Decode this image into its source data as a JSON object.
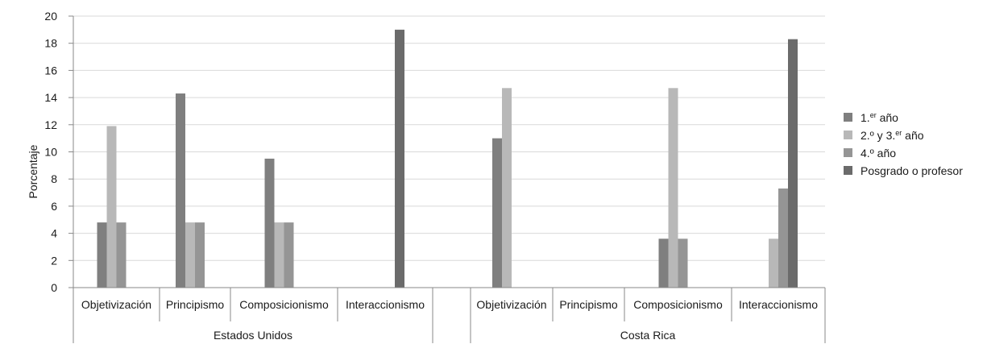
{
  "chart_data": {
    "type": "bar",
    "title": "",
    "xlabel": "",
    "ylabel": "Porcentaje",
    "ylim": [
      0,
      20
    ],
    "yticks": [
      0,
      2,
      4,
      6,
      8,
      10,
      12,
      14,
      16,
      18,
      20
    ],
    "grid": true,
    "legend_position": "right",
    "groups": [
      {
        "label": "Estados Unidos",
        "categories": [
          "Objetivización",
          "Principismo",
          "Composicionismo",
          "Interaccionismo"
        ],
        "series_values": [
          [
            4.8,
            14.3,
            9.5,
            0
          ],
          [
            11.9,
            4.8,
            4.8,
            0
          ],
          [
            4.8,
            4.8,
            4.8,
            0
          ],
          [
            0,
            0,
            0,
            19
          ]
        ]
      },
      {
        "label": "Costa Rica",
        "categories": [
          "Objetivización",
          "Principismo",
          "Composicionismo",
          "Interaccionismo"
        ],
        "series_values": [
          [
            11,
            0,
            3.6,
            0
          ],
          [
            14.7,
            0,
            14.7,
            3.6
          ],
          [
            0,
            0,
            3.6,
            7.3
          ],
          [
            0,
            0,
            0,
            18.3
          ]
        ]
      }
    ],
    "series": [
      {
        "name": "1.er año",
        "name_main": "1.",
        "name_sup": "er",
        "name_rest": " año",
        "color": "#7f7f7f"
      },
      {
        "name": "2.º y 3.er año",
        "name_main": "2.º y 3.",
        "name_sup": "er",
        "name_rest": " año",
        "color": "#b8b8b8"
      },
      {
        "name": "4.º año",
        "name_main": "4.º año",
        "name_sup": "",
        "name_rest": "",
        "color": "#959595"
      },
      {
        "name": "Posgrado o profesor",
        "name_main": "Posgrado o profesor",
        "name_sup": "",
        "name_rest": "",
        "color": "#6b6b6b"
      }
    ]
  }
}
